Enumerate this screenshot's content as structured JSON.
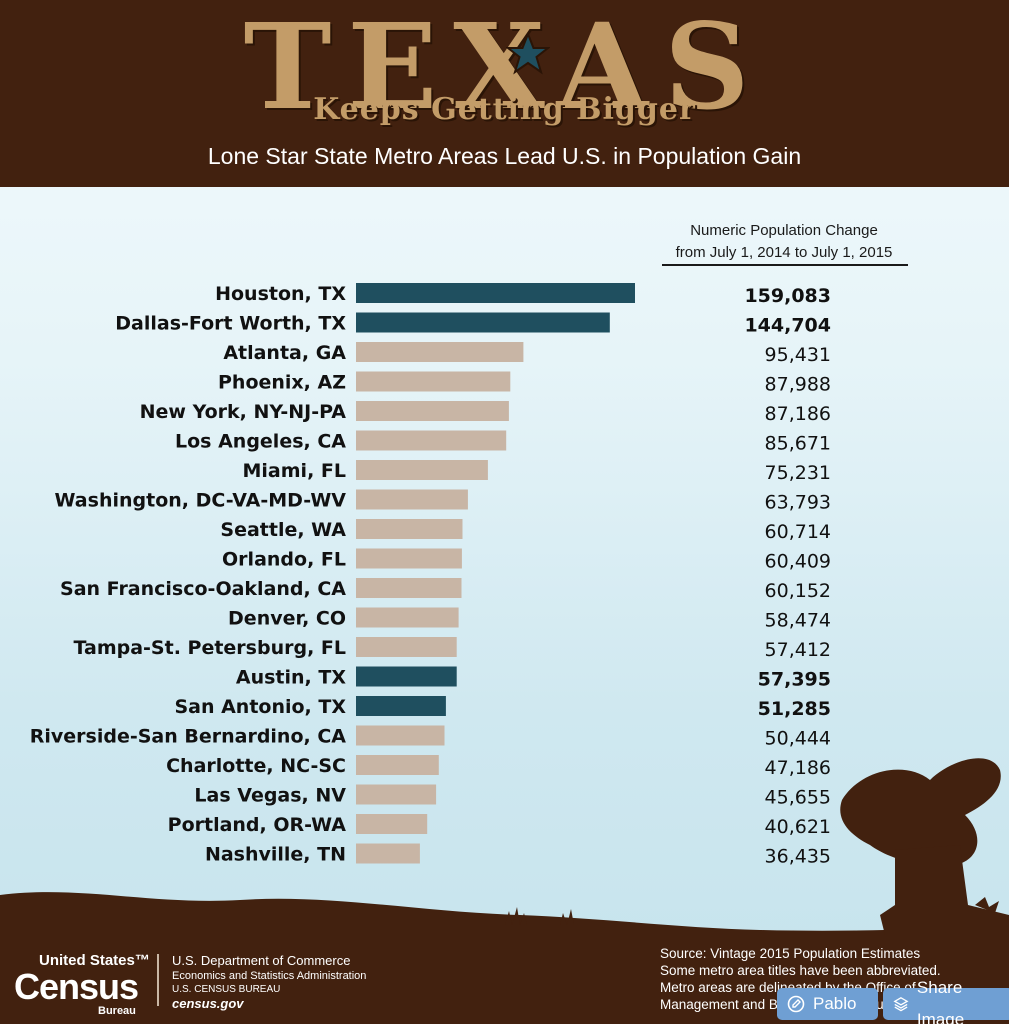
{
  "header": {
    "title": "TEXAS",
    "tagline": "Keeps Getting Bigger",
    "subtitle": "Lone Star State Metro Areas Lead U.S. in Population Gain"
  },
  "column_heading": {
    "line1": "Numeric Population Change",
    "line2": "from July 1, 2014 to July 1, 2015"
  },
  "colors": {
    "texas_bar": "#1f4f5f",
    "other_bar": "#c8b5a5",
    "header_bg": "#42210f",
    "title_tan": "#c39c68"
  },
  "chart_data": {
    "type": "bar",
    "orientation": "horizontal",
    "title": "Lone Star State Metro Areas Lead U.S. in Population Gain",
    "value_label": "Numeric Population Change from July 1, 2014 to July 1, 2015",
    "categories": [
      "Houston, TX",
      "Dallas-Fort Worth, TX",
      "Atlanta, GA",
      "Phoenix, AZ",
      "New York, NY-NJ-PA",
      "Los Angeles, CA",
      "Miami, FL",
      "Washington, DC-VA-MD-WV",
      "Seattle, WA",
      "Orlando, FL",
      "San Francisco-Oakland, CA",
      "Denver, CO",
      "Tampa-St. Petersburg, FL",
      "Austin, TX",
      "San Antonio, TX",
      "Riverside-San Bernardino, CA",
      "Charlotte, NC-SC",
      "Las Vegas, NV",
      "Portland, OR-WA",
      "Nashville, TN"
    ],
    "values": [
      159083,
      144704,
      95431,
      87988,
      87186,
      85671,
      75231,
      63793,
      60714,
      60409,
      60152,
      58474,
      57412,
      57395,
      51285,
      50444,
      47186,
      45655,
      40621,
      36435
    ],
    "value_labels": [
      "159,083",
      "144,704",
      "95,431",
      "87,988",
      "87,186",
      "85,671",
      "75,231",
      "63,793",
      "60,714",
      "60,409",
      "60,152",
      "58,474",
      "57,412",
      "57,395",
      "51,285",
      "50,444",
      "47,186",
      "45,655",
      "40,621",
      "36,435"
    ],
    "highlight": [
      true,
      true,
      false,
      false,
      false,
      false,
      false,
      false,
      false,
      false,
      false,
      false,
      false,
      true,
      true,
      false,
      false,
      false,
      false,
      false
    ],
    "xlim": [
      0,
      159083
    ]
  },
  "footer": {
    "census_top": "United States",
    "census_tm": "™",
    "census_big": "Census",
    "census_bureau": "Bureau",
    "dept_line1": "U.S. Department of Commerce",
    "dept_line2": "Economics and Statistics Administration",
    "dept_line3": "U.S. CENSUS BUREAU",
    "dept_line4": "census.gov",
    "source_line1": "Source: Vintage 2015 Population Estimates",
    "source_line2": "Some metro area titles have been abbreviated.",
    "source_line3": "Metro areas are delineated by the Office of",
    "source_line4": "Management and Budget as of February 2013."
  },
  "overlay": {
    "pablo_label": "Pablo",
    "share_label": "Share Image"
  }
}
